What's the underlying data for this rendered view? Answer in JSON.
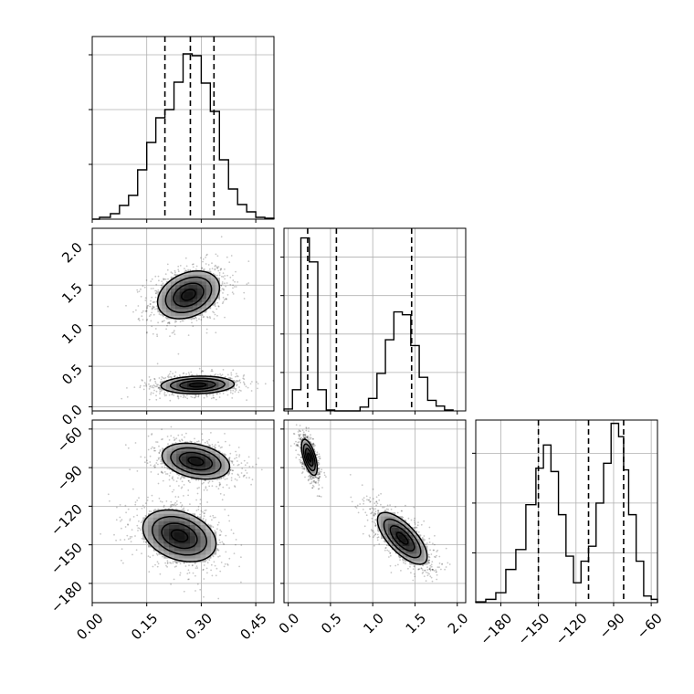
{
  "chart_data": {
    "type": "corner",
    "parameters": [
      "",
      "",
      ""
    ],
    "grid": true,
    "panels": [
      {
        "kind": "histogram",
        "row": 0,
        "col": 0,
        "x_range": [
          0.0,
          0.5
        ],
        "y_range": [
          0,
          1000
        ],
        "y_ticks": [
          300,
          600,
          900
        ],
        "quantiles": [
          0.2,
          0.27,
          0.335
        ],
        "bins": [
          {
            "x0": 0.0,
            "x1": 0.02,
            "count": 0
          },
          {
            "x0": 0.02,
            "x1": 0.05,
            "count": 10
          },
          {
            "x0": 0.05,
            "x1": 0.075,
            "count": 30
          },
          {
            "x0": 0.075,
            "x1": 0.1,
            "count": 75
          },
          {
            "x0": 0.1,
            "x1": 0.125,
            "count": 130
          },
          {
            "x0": 0.125,
            "x1": 0.15,
            "count": 270
          },
          {
            "x0": 0.15,
            "x1": 0.175,
            "count": 420
          },
          {
            "x0": 0.175,
            "x1": 0.2,
            "count": 555
          },
          {
            "x0": 0.2,
            "x1": 0.225,
            "count": 600
          },
          {
            "x0": 0.225,
            "x1": 0.25,
            "count": 750
          },
          {
            "x0": 0.25,
            "x1": 0.275,
            "count": 905
          },
          {
            "x0": 0.275,
            "x1": 0.3,
            "count": 895
          },
          {
            "x0": 0.3,
            "x1": 0.325,
            "count": 745
          },
          {
            "x0": 0.325,
            "x1": 0.35,
            "count": 590
          },
          {
            "x0": 0.35,
            "x1": 0.375,
            "count": 325
          },
          {
            "x0": 0.375,
            "x1": 0.4,
            "count": 165
          },
          {
            "x0": 0.4,
            "x1": 0.425,
            "count": 80
          },
          {
            "x0": 0.425,
            "x1": 0.45,
            "count": 40
          },
          {
            "x0": 0.45,
            "x1": 0.475,
            "count": 10
          },
          {
            "x0": 0.475,
            "x1": 0.5,
            "count": 5
          }
        ]
      },
      {
        "kind": "histogram",
        "row": 1,
        "col": 1,
        "x_range": [
          -0.05,
          2.1
        ],
        "y_range": [
          0,
          1900
        ],
        "y_ticks": [
          400,
          800,
          1200,
          1600
        ],
        "quantiles": [
          0.23,
          0.57,
          1.46
        ],
        "bins": [
          {
            "x0": -0.05,
            "x1": 0.05,
            "count": 20
          },
          {
            "x0": 0.05,
            "x1": 0.15,
            "count": 220
          },
          {
            "x0": 0.15,
            "x1": 0.25,
            "count": 1800
          },
          {
            "x0": 0.25,
            "x1": 0.35,
            "count": 1550
          },
          {
            "x0": 0.35,
            "x1": 0.45,
            "count": 220
          },
          {
            "x0": 0.45,
            "x1": 0.55,
            "count": 10
          },
          {
            "x0": 0.55,
            "x1": 0.65,
            "count": 0
          },
          {
            "x0": 0.65,
            "x1": 0.75,
            "count": 0
          },
          {
            "x0": 0.75,
            "x1": 0.85,
            "count": 0
          },
          {
            "x0": 0.85,
            "x1": 0.95,
            "count": 40
          },
          {
            "x0": 0.95,
            "x1": 1.05,
            "count": 130
          },
          {
            "x0": 1.05,
            "x1": 1.15,
            "count": 390
          },
          {
            "x0": 1.15,
            "x1": 1.25,
            "count": 740
          },
          {
            "x0": 1.25,
            "x1": 1.35,
            "count": 1030
          },
          {
            "x0": 1.35,
            "x1": 1.45,
            "count": 1000
          },
          {
            "x0": 1.45,
            "x1": 1.55,
            "count": 680
          },
          {
            "x0": 1.55,
            "x1": 1.65,
            "count": 350
          },
          {
            "x0": 1.65,
            "x1": 1.75,
            "count": 110
          },
          {
            "x0": 1.75,
            "x1": 1.85,
            "count": 50
          },
          {
            "x0": 1.85,
            "x1": 1.95,
            "count": 10
          }
        ]
      },
      {
        "kind": "histogram",
        "row": 2,
        "col": 2,
        "x_range": [
          -200,
          -55
        ],
        "y_range": [
          0,
          1100
        ],
        "y_ticks": [
          300,
          600,
          900
        ],
        "quantiles": [
          -150,
          -110,
          -82
        ],
        "bins": [
          {
            "x0": -200,
            "x1": -192,
            "count": 5
          },
          {
            "x0": -192,
            "x1": -184,
            "count": 20
          },
          {
            "x0": -184,
            "x1": -176,
            "count": 60
          },
          {
            "x0": -176,
            "x1": -168,
            "count": 200
          },
          {
            "x0": -168,
            "x1": -160,
            "count": 320
          },
          {
            "x0": -160,
            "x1": -152,
            "count": 590
          },
          {
            "x0": -152,
            "x1": -146,
            "count": 810
          },
          {
            "x0": -146,
            "x1": -140,
            "count": 950
          },
          {
            "x0": -140,
            "x1": -134,
            "count": 790
          },
          {
            "x0": -134,
            "x1": -128,
            "count": 530
          },
          {
            "x0": -128,
            "x1": -122,
            "count": 280
          },
          {
            "x0": -122,
            "x1": -116,
            "count": 120
          },
          {
            "x0": -116,
            "x1": -110,
            "count": 250
          },
          {
            "x0": -110,
            "x1": -104,
            "count": 340
          },
          {
            "x0": -104,
            "x1": -98,
            "count": 600
          },
          {
            "x0": -98,
            "x1": -92,
            "count": 840
          },
          {
            "x0": -92,
            "x1": -86,
            "count": 1080
          },
          {
            "x0": -86,
            "x1": -82,
            "count": 1000
          },
          {
            "x0": -82,
            "x1": -78,
            "count": 800
          },
          {
            "x0": -78,
            "x1": -72,
            "count": 530
          },
          {
            "x0": -72,
            "x1": -66,
            "count": 250
          },
          {
            "x0": -66,
            "x1": -60,
            "count": 40
          },
          {
            "x0": -60,
            "x1": -55,
            "count": 20
          }
        ]
      },
      {
        "kind": "2d-density",
        "row": 1,
        "col": 0,
        "x_range": [
          0.0,
          0.5
        ],
        "y_range": [
          -0.05,
          2.2
        ],
        "blobs": [
          {
            "cx": 0.265,
            "cy": 1.38,
            "sx": 0.055,
            "sy": 0.19,
            "rho": 0.3,
            "weight": 0.55
          },
          {
            "cx": 0.29,
            "cy": 0.27,
            "sx": 0.065,
            "sy": 0.07,
            "rho": 0.1,
            "weight": 0.45
          }
        ]
      },
      {
        "kind": "2d-density",
        "row": 2,
        "col": 0,
        "x_range": [
          0.0,
          0.5
        ],
        "y_range": [
          -195,
          -53
        ],
        "blobs": [
          {
            "cx": 0.285,
            "cy": -85,
            "sx": 0.06,
            "sy": 9,
            "rho": -0.3,
            "weight": 0.5
          },
          {
            "cx": 0.24,
            "cy": -143,
            "sx": 0.065,
            "sy": 13,
            "rho": -0.3,
            "weight": 0.5
          }
        ]
      },
      {
        "kind": "2d-density",
        "row": 2,
        "col": 1,
        "x_range": [
          -0.05,
          2.1
        ],
        "y_range": [
          -195,
          -53
        ],
        "blobs": [
          {
            "cx": 0.25,
            "cy": -82,
            "sx": 0.06,
            "sy": 9,
            "rho": -0.6,
            "weight": 0.5
          },
          {
            "cx": 1.35,
            "cy": -145,
            "sx": 0.19,
            "sy": 13,
            "rho": -0.7,
            "weight": 0.5
          }
        ]
      }
    ],
    "tick_labels": {
      "col0_x": [
        "0.00",
        "0.15",
        "0.30",
        "0.45"
      ],
      "col1_x": [
        "0.0",
        "0.5",
        "1.0",
        "1.5",
        "2.0"
      ],
      "col2_x": [
        "−180",
        "−150",
        "−120",
        "−90",
        "−60"
      ],
      "row1_y": [
        "0.0",
        "0.5",
        "1.0",
        "1.5",
        "2.0"
      ],
      "row2_y": [
        "−180",
        "−150",
        "−120",
        "−90",
        "−60"
      ]
    },
    "tick_values": {
      "col0_x": [
        0.0,
        0.15,
        0.3,
        0.45
      ],
      "col1_x": [
        0.0,
        0.5,
        1.0,
        1.5,
        2.0
      ],
      "col2_x": [
        -180,
        -150,
        -120,
        -90,
        -60
      ],
      "row1_y": [
        0.0,
        0.5,
        1.0,
        1.5,
        2.0
      ],
      "row2_y": [
        -180,
        -150,
        -120,
        -90,
        -60
      ]
    }
  }
}
